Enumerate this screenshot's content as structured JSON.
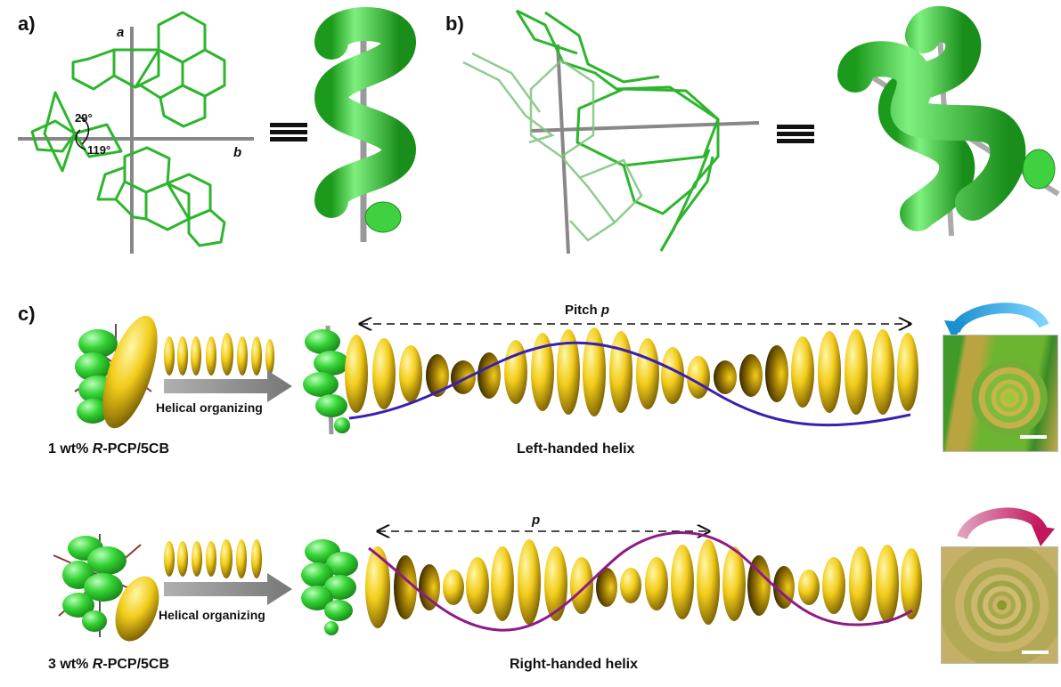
{
  "panels": {
    "a": {
      "label": "a)",
      "axis_a": "a",
      "axis_b": "b",
      "angle1": "29°",
      "angle2": "119°"
    },
    "b": {
      "label": "b)"
    },
    "c": {
      "label": "c)",
      "top": {
        "concentration": "1 wt% ",
        "dopant": "R",
        "system": "-PCP/5CB",
        "process": "Helical organizing",
        "pitch_label": "Pitch ",
        "pitch_symbol": "p",
        "helix": "Left-handed helix"
      },
      "bottom": {
        "concentration": "3 wt% ",
        "dopant": "R",
        "system": "-PCP/5CB",
        "process": "Helical organizing",
        "pitch_symbol": "p",
        "helix": "Right-handed helix"
      }
    }
  },
  "equivalence_symbol": "≡",
  "colors": {
    "molecule_green": "#2db52d",
    "helix_green": "#35d335",
    "mesogen_yellow": "#f2cc1a",
    "left_wave": "#3a1fb0",
    "right_wave": "#8e1a86",
    "arrow_blue": "#29a9e6",
    "arrow_pink": "#d6337a"
  }
}
